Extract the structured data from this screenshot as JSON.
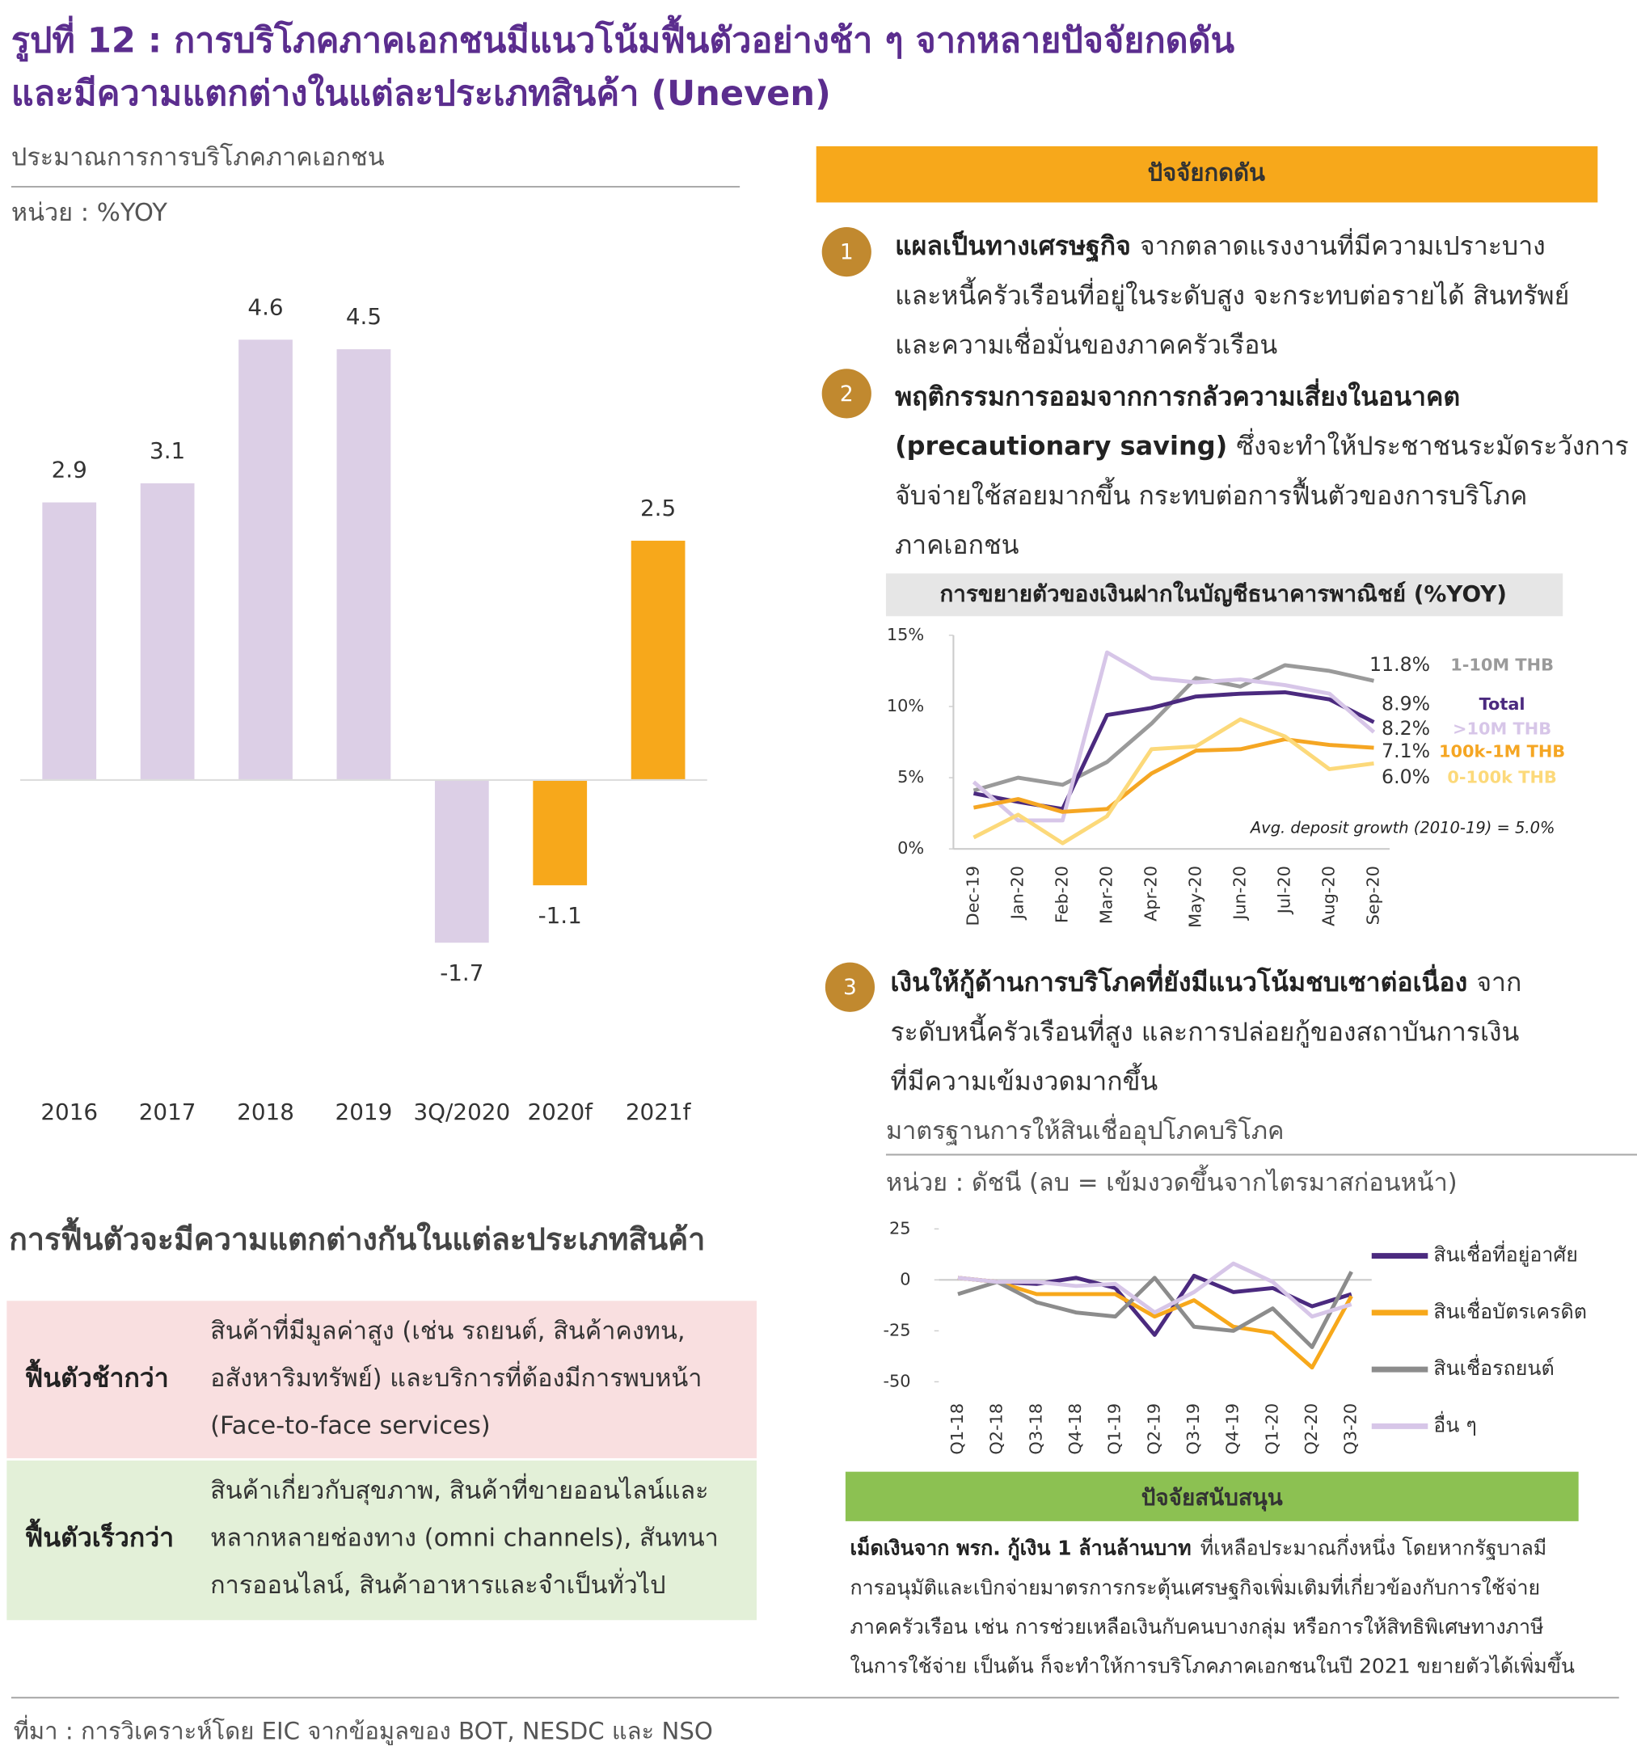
{
  "header": {
    "title_lines": [
      "รูปที่ 12 : การบริโภคภาคเอกชนมีแนวโน้มฟื้นตัวอย่างช้า ๆ จากหลายปัจจัยกดดัน",
      "และมีความแตกต่างในแต่ละประเภทสินค้า (Uneven)"
    ]
  },
  "chart_data": [
    {
      "type": "bar",
      "subtitle": "ประมาณการการบริโภคภาคเอกชน",
      "unit": "หน่วย : %YOY",
      "categories": [
        "2016",
        "2017",
        "2018",
        "2019",
        "3Q/2020",
        "2020f",
        "2021f"
      ],
      "values": [
        2.9,
        3.1,
        4.6,
        4.5,
        -1.7,
        -1.1,
        2.5
      ],
      "colors": [
        "#dccfe6",
        "#dccfe6",
        "#dccfe6",
        "#dccfe6",
        "#dccfe6",
        "#f7a81b",
        "#f7a81b"
      ],
      "ylim": [
        -2,
        5
      ]
    },
    {
      "type": "line",
      "title": "การขยายตัวของเงินฝากในบัญชีธนาคารพาณิชย์ (%YOY)",
      "categories": [
        "Dec-19",
        "Jan-20",
        "Feb-20",
        "Mar-20",
        "Apr-20",
        "May-20",
        "Jun-20",
        "Jul-20",
        "Aug-20",
        "Sep-20"
      ],
      "series": [
        {
          "name": "1-10M THB",
          "color": "#9a9a9a",
          "values": [
            4.1,
            5.0,
            4.5,
            6.1,
            8.8,
            12.0,
            11.4,
            12.9,
            12.5,
            11.8
          ],
          "value_labels": [
            null,
            null,
            null,
            null,
            null,
            null,
            null,
            null,
            null,
            "11.8%"
          ]
        },
        {
          "name": "Total",
          "color": "#4b2a7f",
          "values": [
            3.9,
            3.3,
            2.8,
            9.4,
            9.9,
            10.7,
            10.9,
            11.0,
            10.5,
            8.9
          ],
          "value_labels": [
            null,
            null,
            null,
            null,
            null,
            null,
            null,
            null,
            null,
            "8.9%"
          ]
        },
        {
          "name": ">10M THB",
          "color": "#d7c6e8",
          "values": [
            4.7,
            2.0,
            2.0,
            13.8,
            12.0,
            11.7,
            11.9,
            11.5,
            10.9,
            8.2
          ],
          "value_labels": [
            null,
            null,
            null,
            null,
            null,
            null,
            null,
            null,
            null,
            "8.2%"
          ]
        },
        {
          "name": "100k-1M THB",
          "color": "#f5a623",
          "values": [
            2.9,
            3.5,
            2.6,
            2.8,
            5.3,
            6.9,
            7.0,
            7.7,
            7.3,
            7.1
          ],
          "value_labels": [
            null,
            null,
            null,
            null,
            null,
            null,
            null,
            null,
            null,
            "7.1%"
          ]
        },
        {
          "name": "0-100k THB",
          "color": "#fcd97a",
          "values": [
            0.8,
            2.4,
            0.4,
            2.3,
            7.0,
            7.2,
            9.1,
            7.9,
            5.6,
            6.0
          ],
          "value_labels": [
            null,
            null,
            null,
            null,
            null,
            null,
            null,
            null,
            null,
            "6.0%"
          ]
        }
      ],
      "ylim": [
        0,
        15
      ],
      "yticks": [
        {
          "value": 15,
          "label": "15%"
        },
        {
          "value": 10,
          "label": "10%"
        },
        {
          "value": 5,
          "label": "5%"
        },
        {
          "value": 0,
          "label": "0%"
        }
      ],
      "annotation": "Avg. deposit growth (2010-19) = 5.0%"
    },
    {
      "type": "line",
      "subtitle": "มาตรฐานการให้สินเชื่ออุปโภคบริโภค",
      "unit": "หน่วย : ดัชนี (ลบ = เข้มงวดขึ้นจากไตรมาสก่อนหน้า)",
      "categories": [
        "Q1-18",
        "Q2-18",
        "Q3-18",
        "Q4-18",
        "Q1-19",
        "Q2-19",
        "Q3-19",
        "Q4-19",
        "Q1-20",
        "Q2-20",
        "Q3-20"
      ],
      "series": [
        {
          "name": "สินเชื่อที่อยู่อาศัย",
          "color": "#4b2a7f",
          "values": [
            1,
            -1,
            -2,
            1,
            -4,
            -27,
            2,
            -6,
            -4,
            -13,
            -7
          ]
        },
        {
          "name": "สินเชื่อบัตรเครดิต",
          "color": "#f7a81b",
          "values": [
            1,
            -1,
            -7,
            -7,
            -7,
            -18,
            -10,
            -23,
            -26,
            -43,
            -8
          ]
        },
        {
          "name": "สินเชื่อรถยนต์",
          "color": "#8c8c8c",
          "values": [
            -7,
            -1,
            -11,
            -16,
            -18,
            1,
            -23,
            -25,
            -14,
            -33,
            4
          ]
        },
        {
          "name": "อื่น ๆ",
          "color": "#d7c6e8",
          "values": [
            1,
            -1,
            -1,
            -3,
            -2,
            -16,
            -6,
            8,
            -1,
            -18,
            -12
          ]
        }
      ],
      "ylim": [
        -50,
        25
      ],
      "yticks": [
        25,
        0,
        -25,
        -50
      ]
    }
  ],
  "pressure": {
    "title": "ปัจจัยกดดัน",
    "items": [
      {
        "number": 1,
        "lines": [
          {
            "bold": "แผลเป็นทางเศรษฐกิจ",
            "text": "จากตลาดแรงงานที่มีความเปราะบาง"
          },
          {
            "text": "และหนี้ครัวเรือนที่อยู่ในระดับสูง จะกระทบต่อรายได้ สินทรัพย์"
          },
          {
            "text": "และความเชื่อมั่นของภาคครัวเรือน"
          }
        ]
      },
      {
        "number": 2,
        "lines": [
          {
            "bold": "พฤติกรรมการออมจากการกลัวความเสี่ยงในอนาคต"
          },
          {
            "bold": "(precautionary saving)",
            "text": "ซึ่งจะทำให้ประชาชนระมัดระวังการ"
          },
          {
            "text": "จับจ่ายใช้สอยมากขึ้น กระทบต่อการฟื้นตัวของการบริโภค"
          },
          {
            "text": "ภาคเอกชน"
          }
        ]
      },
      {
        "number": 3,
        "lines": [
          {
            "bold": "เงินให้กู้ด้านการบริโภคที่ยังมีแนวโน้มชบเซาต่อเนื่อง",
            "text": "จาก"
          },
          {
            "text": "ระดับหนี้ครัวเรือนที่สูง และการปล่อยกู้ของสถาบันการเงิน"
          },
          {
            "text": "ที่มีความเข้มงวดมากขึ้น"
          }
        ]
      }
    ]
  },
  "support": {
    "title": "ปัจจัยสนับสนุน",
    "lines": [
      {
        "bold": "เม็ดเงินจาก พรก. กู้เงิน 1 ล้านล้านบาท",
        "text": "ที่เหลือประมาณกึ่งหนึ่ง โดยหากรัฐบาลมี"
      },
      {
        "text": "การอนุมัติและเบิกจ่ายมาตรการกระตุ้นเศรษฐกิจเพิ่มเติมที่เกี่ยวข้องกับการใช้จ่าย"
      },
      {
        "text": "ภาคครัวเรือน เช่น การช่วยเหลือเงินกับคนบางกลุ่ม หรือการให้สิทธิพิเศษทางภาษี"
      },
      {
        "text": "ในการใช้จ่าย เป็นต้น ก็จะทำให้การบริโภคภาคเอกชนในปี 2021 ขยายตัวได้เพิ่มขึ้น"
      }
    ]
  },
  "table": {
    "title": "การฟื้นตัวจะมีความแตกต่างกันในแต่ละประเภทสินค้า",
    "rows": [
      {
        "label": "ฟื้นตัวช้ากว่า",
        "lines": [
          "สินค้าที่มีมูลค่าสูง (เช่น รถยนต์, สินค้าคงทน,",
          "อสังหาริมทรัพย์) และบริการที่ต้องมีการพบหน้า",
          "(Face-to-face services)"
        ]
      },
      {
        "label": "ฟื้นตัวเร็วกว่า",
        "lines": [
          "สินค้าเกี่ยวกับสุขภาพ, สินค้าที่ขายออนไลน์และ",
          "หลากหลายช่องทาง (omni channels), สันทนา",
          "การออนไลน์, สินค้าอาหารและจำเป็นทั่วไป"
        ]
      }
    ]
  },
  "source": "ที่มา : การวิเคราะห์โดย EIC จากข้อมูลของ BOT, NESDC และ NSO"
}
